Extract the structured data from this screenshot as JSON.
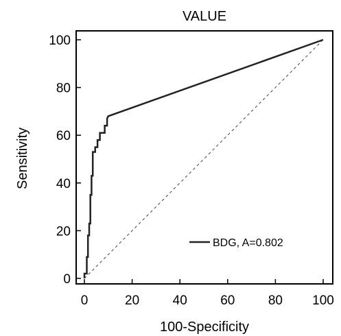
{
  "chart_data": {
    "type": "line",
    "title": "VALUE",
    "xlabel": "100-Specificity",
    "ylabel": "Sensitivity",
    "xlim": [
      0,
      100
    ],
    "ylim": [
      0,
      100
    ],
    "xticks": [
      0,
      20,
      40,
      60,
      80,
      100
    ],
    "yticks": [
      0,
      20,
      40,
      60,
      80,
      100
    ],
    "grid": false,
    "legend_position": "bottom-right",
    "series": [
      {
        "name": "BDG, A=0.802",
        "color": "#222222",
        "line_style": "solid",
        "x": [
          0,
          0,
          1.0,
          1.0,
          1.5,
          1.5,
          2.0,
          2.0,
          2.5,
          2.5,
          3.0,
          3.0,
          3.5,
          3.5,
          4.5,
          4.5,
          5.5,
          5.5,
          6.5,
          6.5,
          8.5,
          8.5,
          9.5,
          9.5,
          10.0,
          100
        ],
        "y": [
          0,
          2,
          2,
          9,
          9,
          18,
          18,
          23,
          23,
          35,
          35,
          43,
          43,
          53,
          53,
          55,
          55,
          58,
          58,
          61,
          61,
          64,
          64,
          67,
          68,
          100
        ]
      },
      {
        "color": "#444444",
        "line_style": "dashed",
        "x": [
          0,
          100
        ],
        "y": [
          0,
          100
        ]
      }
    ]
  }
}
